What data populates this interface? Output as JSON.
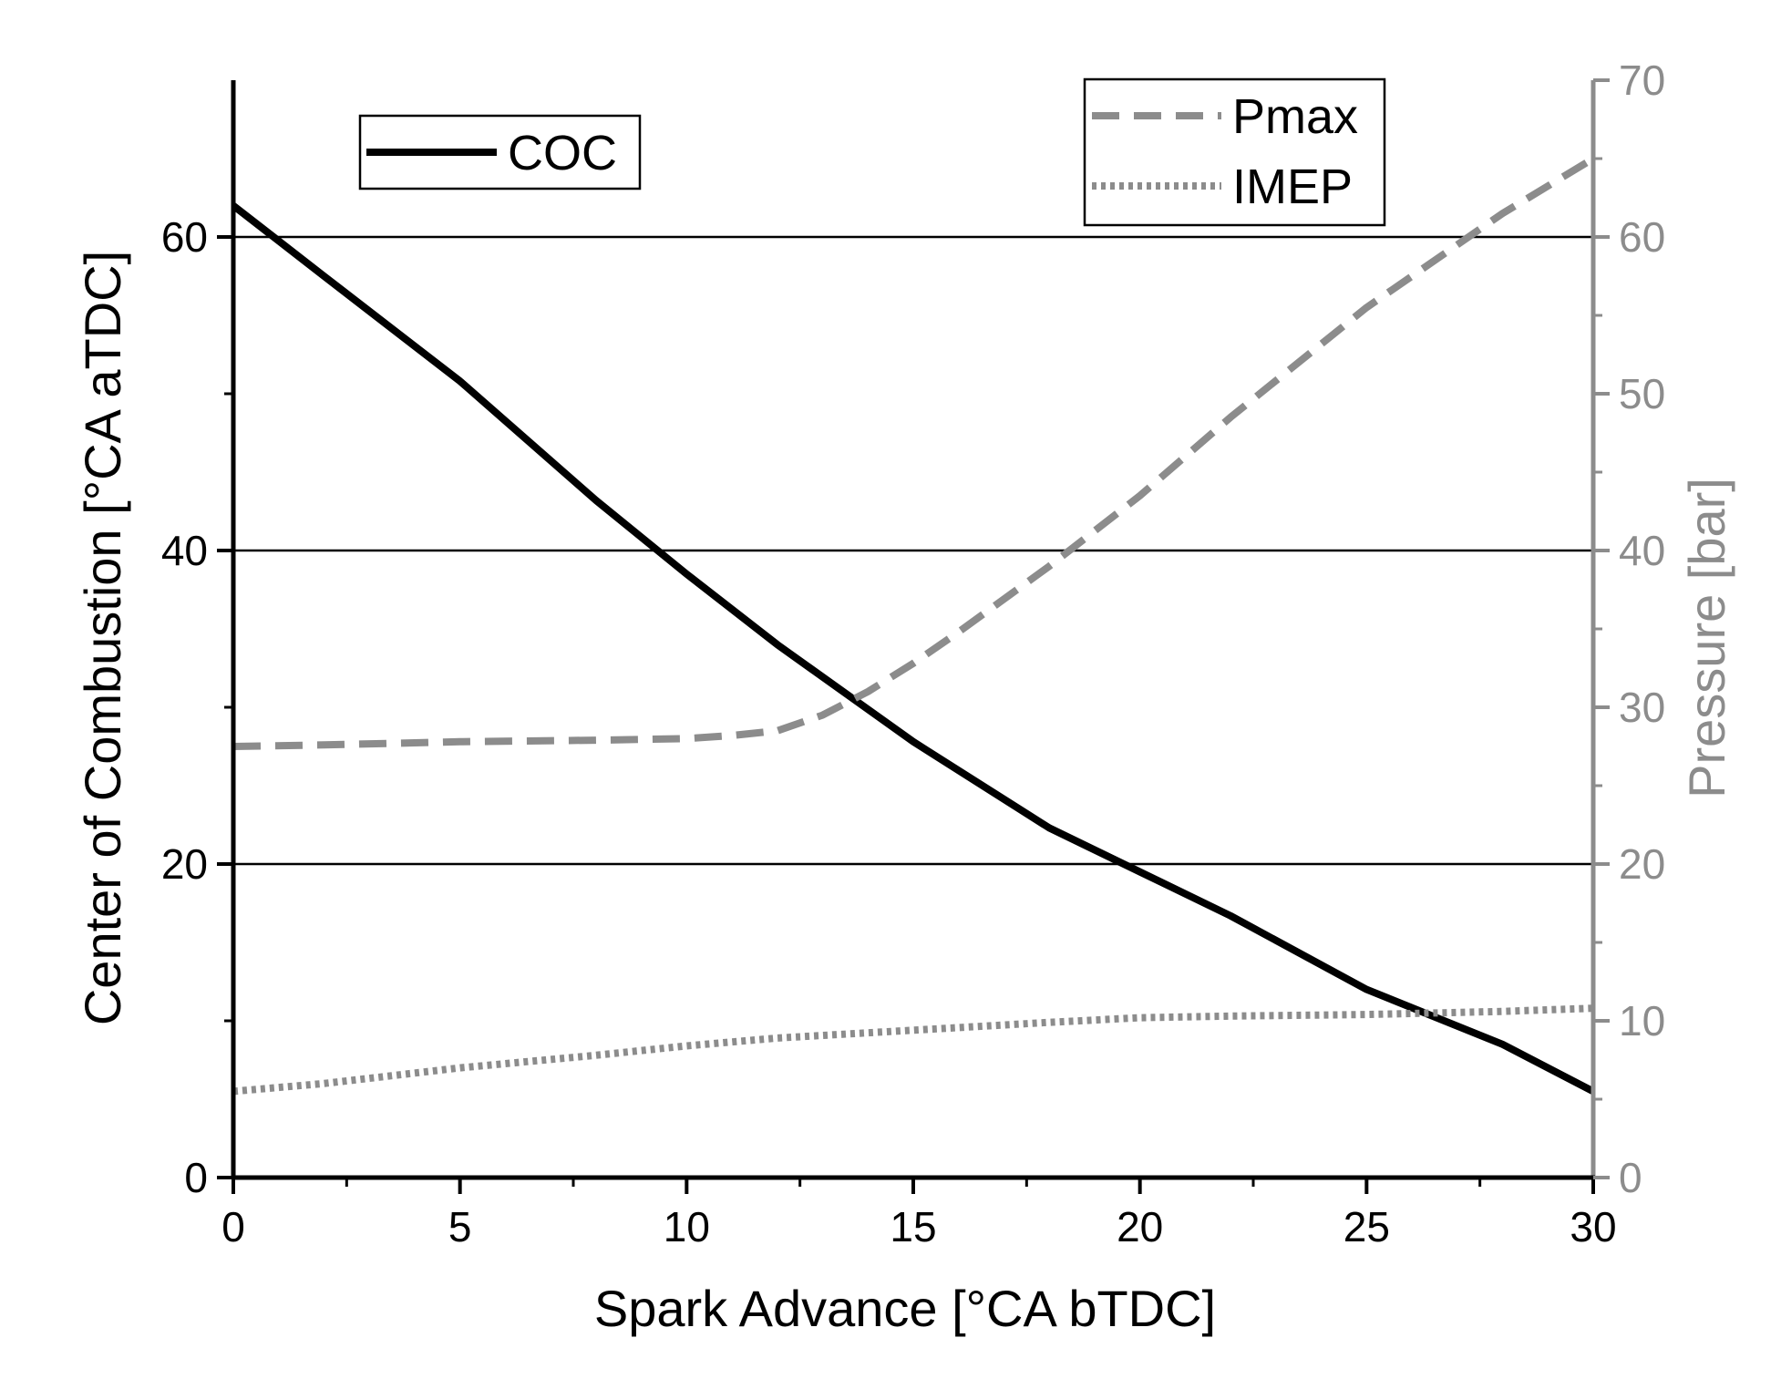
{
  "chart_data": {
    "type": "line",
    "xlabel": "Spark Advance [°CA bTDC]",
    "ylabel_left": "Center of Combustion [°CA aTDC]",
    "ylabel_right": "Pressure [bar]",
    "xlim": [
      0,
      30
    ],
    "ylim_left": [
      0,
      70
    ],
    "ylim_right": [
      0,
      70
    ],
    "x_ticks": [
      0,
      5,
      10,
      15,
      20,
      25,
      30
    ],
    "y_left_ticks": [
      0,
      20,
      40,
      60
    ],
    "y_right_ticks": [
      0,
      10,
      20,
      30,
      40,
      50,
      60,
      70
    ],
    "grid_lines_y": [
      20,
      40,
      60
    ],
    "legend_left_position": "top-left",
    "legend_right_position": "top-right",
    "colors": {
      "coc": "#000000",
      "pressure": "#8c8c8c",
      "grid": "#000000"
    },
    "series": [
      {
        "name": "COC",
        "axis": "left",
        "style": "solid",
        "x": [
          0,
          2,
          5,
          8,
          10,
          12,
          15,
          18,
          20,
          22,
          25,
          28,
          30
        ],
        "values": [
          62,
          57.5,
          50.8,
          43.2,
          38.5,
          34.0,
          27.8,
          22.3,
          19.5,
          16.7,
          12.0,
          8.5,
          5.5
        ]
      },
      {
        "name": "Pmax",
        "axis": "right",
        "style": "dashed",
        "x": [
          0,
          2,
          5,
          8,
          10,
          11,
          12,
          13,
          14,
          15,
          16,
          18,
          20,
          22,
          25,
          28,
          30
        ],
        "values": [
          27.5,
          27.6,
          27.8,
          27.9,
          28.0,
          28.2,
          28.5,
          29.5,
          31.0,
          32.8,
          34.8,
          39.0,
          43.5,
          48.5,
          55.5,
          61.5,
          65.0
        ]
      },
      {
        "name": "IMEP",
        "axis": "right",
        "style": "dotted",
        "x": [
          0,
          2,
          5,
          8,
          10,
          12,
          15,
          18,
          20,
          22,
          25,
          28,
          30
        ],
        "values": [
          5.5,
          6.0,
          7.0,
          7.8,
          8.4,
          8.9,
          9.4,
          9.9,
          10.2,
          10.3,
          10.4,
          10.6,
          10.8
        ]
      }
    ]
  }
}
